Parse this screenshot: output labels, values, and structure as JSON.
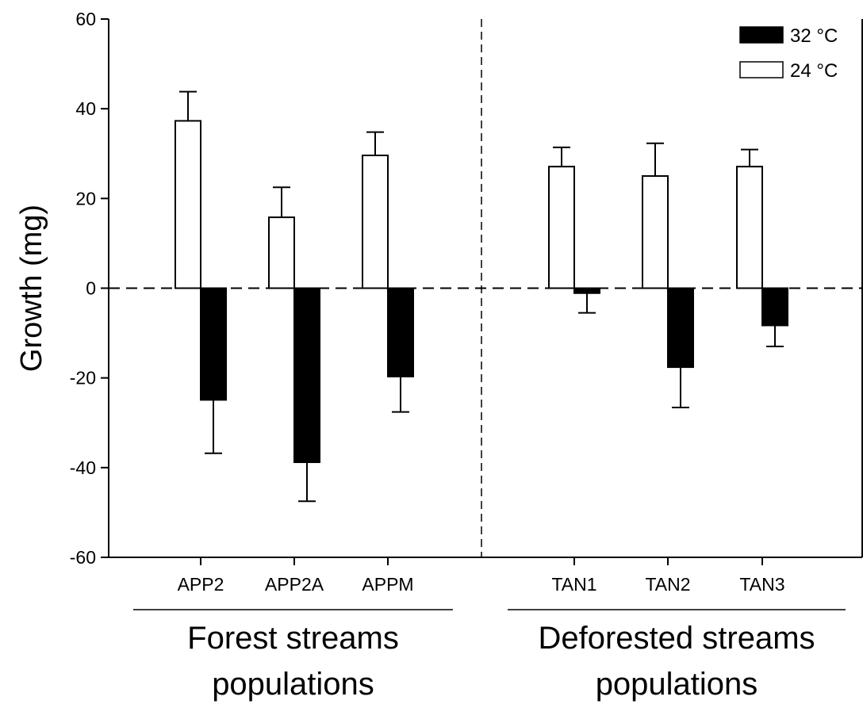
{
  "chart_data": {
    "type": "bar",
    "ylabel": "Growth (mg)",
    "xlabel": "",
    "ylim": [
      -60,
      60
    ],
    "yticks": [
      -60,
      -40,
      -20,
      0,
      20,
      40,
      60
    ],
    "categories": [
      "APP2",
      "APP2A",
      "APPM",
      "TAN1",
      "TAN2",
      "TAN3"
    ],
    "groups": [
      {
        "label_line1": "Forest streams",
        "label_line2": "populations",
        "categories": [
          "APP2",
          "APP2A",
          "APPM"
        ]
      },
      {
        "label_line1": "Deforested streams",
        "label_line2": "populations",
        "categories": [
          "TAN1",
          "TAN2",
          "TAN3"
        ]
      }
    ],
    "series": [
      {
        "name": "24 °C",
        "color": "#ffffff",
        "values": [
          37.3,
          15.8,
          29.6,
          27.1,
          25.0,
          27.1
        ],
        "errors": [
          6.5,
          6.7,
          5.2,
          4.3,
          7.3,
          3.8
        ]
      },
      {
        "name": "32 °C",
        "color": "#000000",
        "values": [
          -24.9,
          -38.8,
          -19.7,
          -1.1,
          -17.6,
          -8.3
        ],
        "errors": [
          11.9,
          8.7,
          7.9,
          4.4,
          9.0,
          4.7
        ]
      }
    ],
    "legend_position": "top-right",
    "grid": false
  }
}
